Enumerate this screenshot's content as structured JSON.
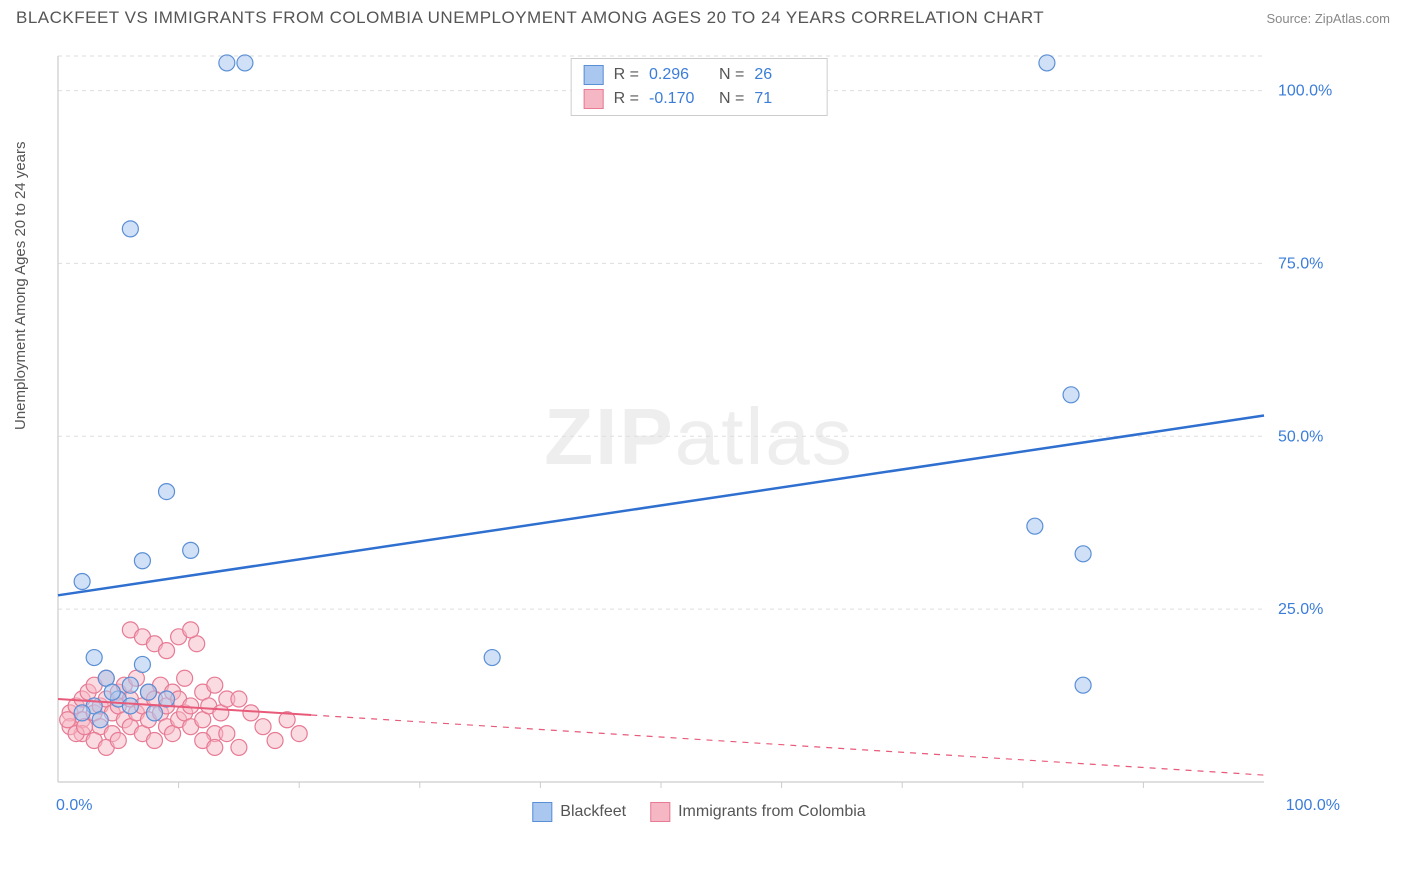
{
  "header": {
    "title": "BLACKFEET VS IMMIGRANTS FROM COLOMBIA UNEMPLOYMENT AMONG AGES 20 TO 24 YEARS CORRELATION CHART",
    "source": "Source: ZipAtlas.com"
  },
  "y_axis_label": "Unemployment Among Ages 20 to 24 years",
  "watermark": {
    "bold": "ZIP",
    "rest": "atlas"
  },
  "chart": {
    "type": "scatter",
    "xlim": [
      0,
      100
    ],
    "ylim": [
      0,
      105
    ],
    "grid_color": "#dddddd",
    "axis_color": "#cccccc",
    "background_color": "#ffffff",
    "y_ticks": [
      {
        "v": 25,
        "label": "25.0%"
      },
      {
        "v": 50,
        "label": "50.0%"
      },
      {
        "v": 75,
        "label": "75.0%"
      },
      {
        "v": 100,
        "label": "100.0%"
      }
    ],
    "x_ticks": [
      {
        "v": 0,
        "label": "0.0%"
      },
      {
        "v": 100,
        "label": "100.0%"
      }
    ],
    "x_minor_ticks": [
      10,
      20,
      30,
      40,
      50,
      60,
      70,
      80,
      90
    ],
    "series": [
      {
        "name": "Blackfeet",
        "fill": "#a9c7ef",
        "stroke": "#5a8fd6",
        "fill_opacity": 0.55,
        "marker_r": 8,
        "R": "0.296",
        "N": "26",
        "trend": {
          "solid_to_x": 100,
          "y1": 27,
          "y2": 53,
          "color": "#2e6fd0",
          "width": 2.5
        },
        "points": [
          [
            14,
            104
          ],
          [
            15.5,
            104
          ],
          [
            82,
            104
          ],
          [
            6,
            80
          ],
          [
            9,
            42
          ],
          [
            7,
            32
          ],
          [
            11,
            33.5
          ],
          [
            84,
            56
          ],
          [
            81,
            37
          ],
          [
            85,
            33
          ],
          [
            2,
            29
          ],
          [
            3,
            18
          ],
          [
            4,
            15
          ],
          [
            5,
            12
          ],
          [
            6,
            14
          ],
          [
            7,
            17
          ],
          [
            8,
            10
          ],
          [
            9,
            12
          ],
          [
            3,
            11
          ],
          [
            4.5,
            13
          ],
          [
            6,
            11
          ],
          [
            7.5,
            13
          ],
          [
            36,
            18
          ],
          [
            85,
            14
          ],
          [
            2,
            10
          ],
          [
            3.5,
            9
          ]
        ]
      },
      {
        "name": "Immigrants from Colombia",
        "fill": "#f6b7c4",
        "stroke": "#e77a94",
        "fill_opacity": 0.5,
        "marker_r": 8,
        "R": "-0.170",
        "N": "71",
        "trend": {
          "solid_to_x": 21,
          "y1": 12,
          "y2": 1,
          "dash_from_x": 21,
          "color": "#e85a7a",
          "width": 2
        },
        "points": [
          [
            1,
            10
          ],
          [
            1.5,
            11
          ],
          [
            2,
            12
          ],
          [
            2,
            9
          ],
          [
            2.5,
            13
          ],
          [
            3,
            10
          ],
          [
            3,
            14
          ],
          [
            3.5,
            11
          ],
          [
            3.5,
            8
          ],
          [
            4,
            12
          ],
          [
            4,
            15
          ],
          [
            4.5,
            10
          ],
          [
            4.5,
            7
          ],
          [
            5,
            13
          ],
          [
            5,
            11
          ],
          [
            5.5,
            9
          ],
          [
            5.5,
            14
          ],
          [
            6,
            12
          ],
          [
            6,
            8
          ],
          [
            6.5,
            10
          ],
          [
            6.5,
            15
          ],
          [
            7,
            11
          ],
          [
            7,
            7
          ],
          [
            7.5,
            13
          ],
          [
            7.5,
            9
          ],
          [
            8,
            12
          ],
          [
            8,
            6
          ],
          [
            8.5,
            10
          ],
          [
            8.5,
            14
          ],
          [
            9,
            11
          ],
          [
            9,
            8
          ],
          [
            9.5,
            13
          ],
          [
            9.5,
            7
          ],
          [
            10,
            12
          ],
          [
            10,
            9
          ],
          [
            10.5,
            10
          ],
          [
            10.5,
            15
          ],
          [
            11,
            8
          ],
          [
            11,
            11
          ],
          [
            11.5,
            20
          ],
          [
            12,
            13
          ],
          [
            12,
            9
          ],
          [
            12.5,
            11
          ],
          [
            13,
            7
          ],
          [
            13,
            14
          ],
          [
            13.5,
            10
          ],
          [
            14,
            12
          ],
          [
            6,
            22
          ],
          [
            7,
            21
          ],
          [
            8,
            20
          ],
          [
            9,
            19
          ],
          [
            10,
            21
          ],
          [
            11,
            22
          ],
          [
            16,
            10
          ],
          [
            17,
            8
          ],
          [
            18,
            6
          ],
          [
            15,
            12
          ],
          [
            14,
            7
          ],
          [
            12,
            6
          ],
          [
            2,
            7
          ],
          [
            3,
            6
          ],
          [
            4,
            5
          ],
          [
            5,
            6
          ],
          [
            1,
            8
          ],
          [
            1.5,
            7
          ],
          [
            0.8,
            9
          ],
          [
            2.2,
            8
          ],
          [
            19,
            9
          ],
          [
            20,
            7
          ],
          [
            15,
            5
          ],
          [
            13,
            5
          ]
        ]
      }
    ]
  },
  "bottom_legend": {
    "items": [
      {
        "label": "Blackfeet",
        "fill": "#a9c7ef",
        "stroke": "#5a8fd6"
      },
      {
        "label": "Immigrants from Colombia",
        "fill": "#f6b7c4",
        "stroke": "#e77a94"
      }
    ]
  }
}
